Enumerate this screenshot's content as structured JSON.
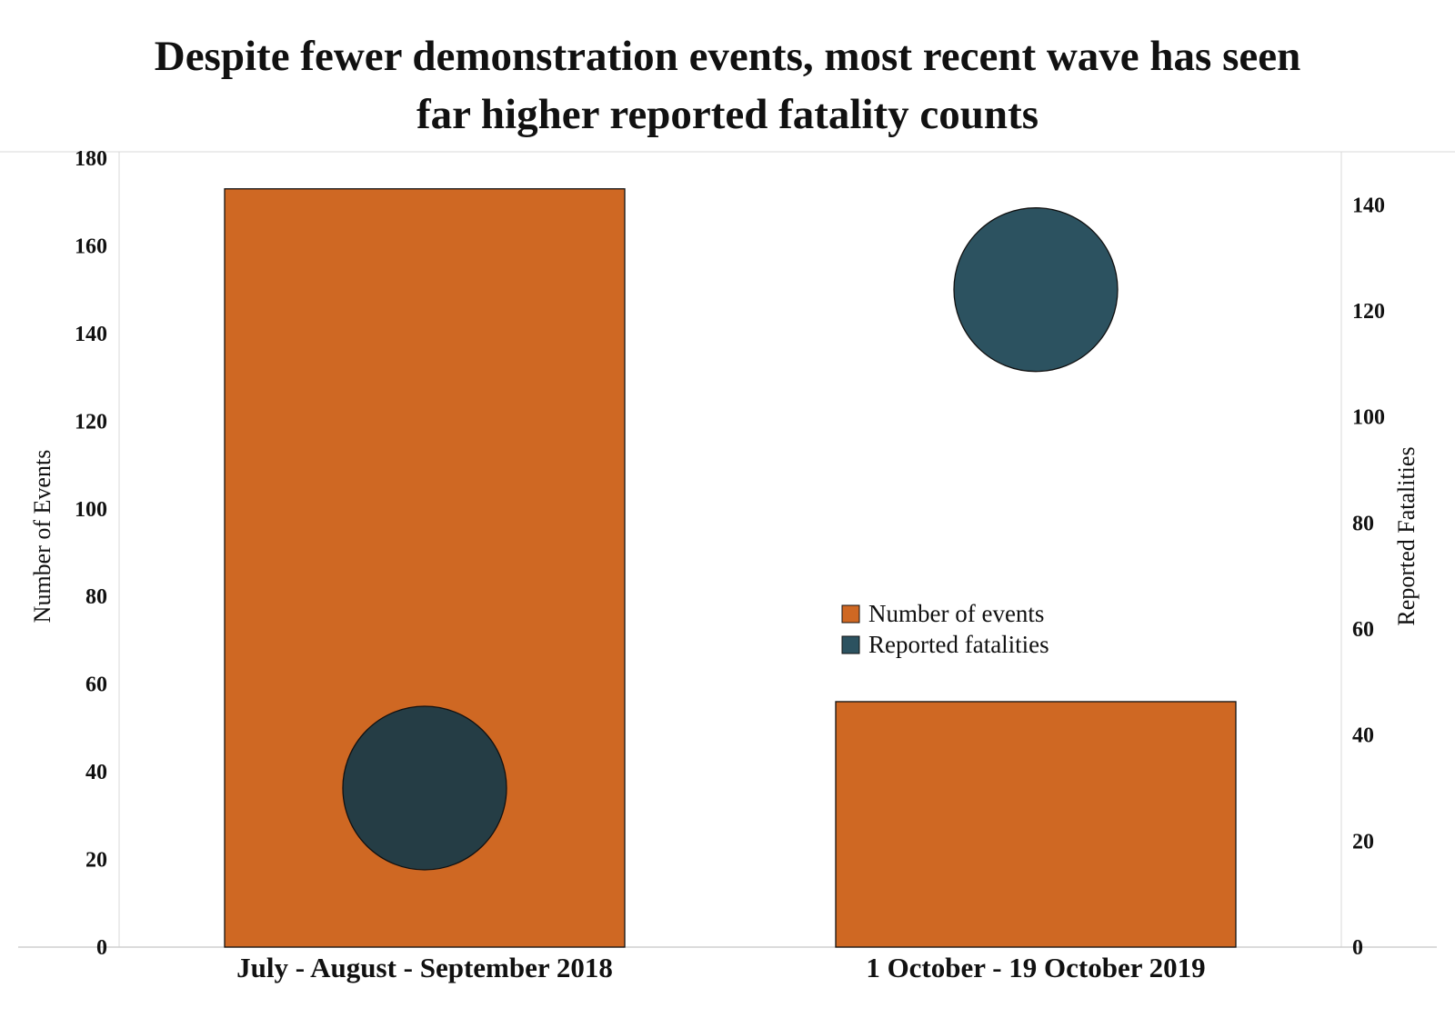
{
  "title_lines": [
    "Despite fewer demonstration events, most recent wave has seen",
    "far higher reported fatality counts"
  ],
  "colors": {
    "events": "#CF6823",
    "fatalities_1": "#253D45",
    "fatalities_2": "#2C5260"
  },
  "chart_data": {
    "type": "bar",
    "categories": [
      "July - August - September 2018",
      "1 October - 19 October 2019"
    ],
    "series": [
      {
        "name": "Number of events",
        "axis": "left",
        "mark": "bar",
        "values": [
          173,
          56
        ]
      },
      {
        "name": "Reported fatalities",
        "axis": "right",
        "mark": "circle",
        "values": [
          30,
          124
        ]
      }
    ],
    "ylabel": "Number of Events",
    "y2label": "Reported Fatalities",
    "ylim": [
      0,
      180
    ],
    "y2lim": [
      0,
      150
    ],
    "yticks": [
      0,
      20,
      40,
      60,
      80,
      100,
      120,
      140,
      160,
      180
    ],
    "y2ticks": [
      0,
      20,
      40,
      60,
      80,
      100,
      120,
      140
    ],
    "legend": "center-right",
    "grid": false
  }
}
